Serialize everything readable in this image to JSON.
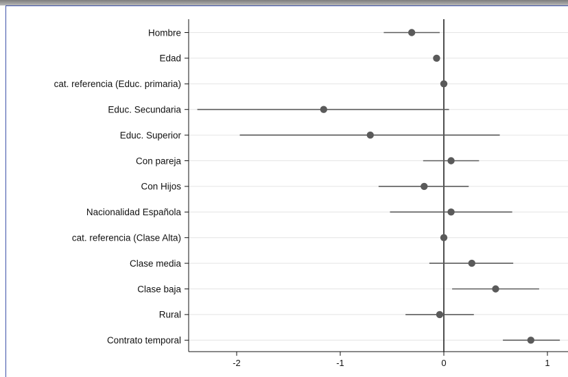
{
  "chart_data": {
    "type": "scatter",
    "title": "",
    "xlabel": "",
    "ylabel": "",
    "xlim": [
      -2.45,
      1.2
    ],
    "xticks": [
      -2,
      -1,
      0,
      1
    ],
    "xtick_labels": [
      "-2",
      "-1",
      "0",
      "1"
    ],
    "reference_line": 0,
    "grid": "horizontal",
    "categories": [
      "Hombre",
      "Edad",
      "cat. referencia (Educ. primaria)",
      "Educ. Secundaria",
      "Educ. Superior",
      "Con pareja",
      "Con Hijos",
      "Nacionalidad Española",
      "cat. referencia (Clase Alta)",
      "Clase media",
      "Clase baja",
      "Rural",
      "Contrato temporal"
    ],
    "series": [
      {
        "estimates": [
          -0.31,
          -0.07,
          0.0,
          -1.16,
          -0.71,
          0.07,
          -0.19,
          0.07,
          0.0,
          0.27,
          0.5,
          -0.04,
          0.84
        ],
        "ci_low": [
          -0.58,
          -0.09,
          0.0,
          -2.38,
          -1.97,
          -0.2,
          -0.63,
          -0.52,
          0.0,
          -0.14,
          0.08,
          -0.37,
          0.57
        ],
        "ci_high": [
          -0.04,
          -0.05,
          0.0,
          0.05,
          0.54,
          0.34,
          0.24,
          0.66,
          0.0,
          0.67,
          0.92,
          0.29,
          1.12
        ]
      }
    ],
    "colors": {
      "marker": "#5a5a5a",
      "ci_line": "#5a5a5a",
      "zero_line": "#222222",
      "grid": "#e4e4e4",
      "axis": "#111111"
    }
  }
}
